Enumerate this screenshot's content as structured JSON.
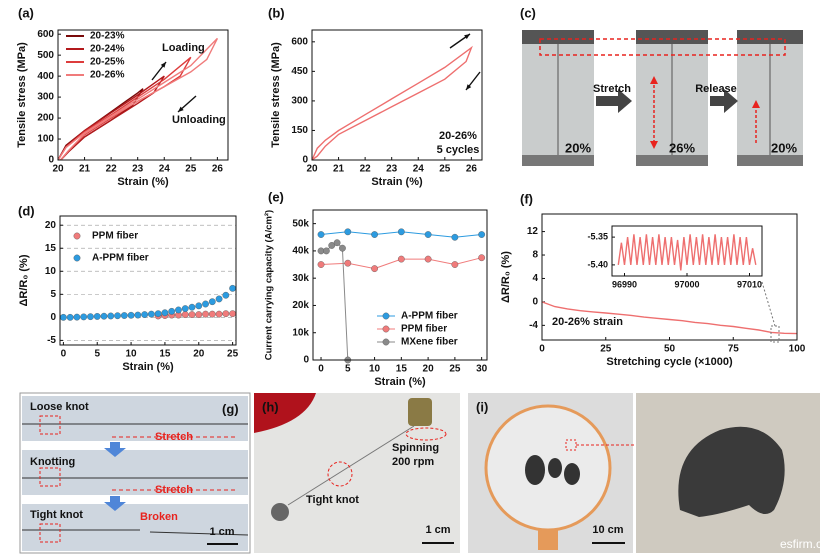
{
  "chart_data": [
    {
      "type": "line",
      "label": "(a)",
      "x_label": "Strain (%)",
      "y_label": "Tensile stress (MPa)",
      "xlim": [
        20,
        26.4
      ],
      "ylim": [
        0,
        620
      ],
      "xticks": [
        20,
        21,
        22,
        23,
        24,
        25,
        26
      ],
      "yticks": [
        0,
        100,
        200,
        300,
        400,
        500,
        600
      ],
      "legend": "upper left",
      "annotations": [
        "Loading",
        "Unloading"
      ],
      "series": [
        {
          "name": "20-23%",
          "color": "#7a0a0a",
          "x": [
            20,
            20.3,
            21,
            22,
            23,
            23.2,
            22.8,
            22,
            21,
            20.4,
            20.1
          ],
          "values": [
            0,
            70,
            140,
            230,
            320,
            340,
            260,
            190,
            110,
            40,
            0
          ]
        },
        {
          "name": "20-24%",
          "color": "#b3191c",
          "x": [
            20,
            20.3,
            21,
            22,
            23,
            24,
            23.6,
            23,
            22,
            21,
            20.4,
            20.1
          ],
          "values": [
            0,
            65,
            140,
            225,
            310,
            400,
            320,
            270,
            190,
            110,
            40,
            0
          ]
        },
        {
          "name": "20-25%",
          "color": "#dd3c3c",
          "x": [
            20,
            20.3,
            21,
            22,
            23,
            24,
            25,
            24.6,
            24,
            23,
            22,
            21,
            20.4,
            20.1
          ],
          "values": [
            0,
            60,
            135,
            215,
            300,
            385,
            490,
            400,
            350,
            280,
            200,
            120,
            45,
            0
          ]
        },
        {
          "name": "20-26%",
          "color": "#f07b7b",
          "x": [
            20,
            20.3,
            21,
            22,
            23,
            24,
            25,
            26,
            25.6,
            25,
            24,
            23,
            22,
            21,
            20.4,
            20.1
          ],
          "values": [
            0,
            60,
            130,
            210,
            290,
            370,
            450,
            580,
            480,
            420,
            350,
            280,
            205,
            125,
            45,
            0
          ]
        }
      ]
    },
    {
      "type": "line",
      "label": "(b)",
      "x_label": "Strain (%)",
      "y_label": "Tensile stress (MPa)",
      "xlim": [
        20,
        26.4
      ],
      "ylim": [
        0,
        660
      ],
      "xticks": [
        20,
        21,
        22,
        23,
        24,
        25,
        26
      ],
      "yticks": [
        0,
        150,
        300,
        450,
        600
      ],
      "annotations": [
        "20-26%",
        "5 cycles"
      ],
      "series": [
        {
          "color": "#ee6f6f",
          "x": [
            20,
            20.2,
            20.5,
            21,
            22,
            23,
            24,
            25,
            26,
            25.8,
            25,
            24,
            23,
            22,
            21,
            20.5,
            20.2,
            20
          ],
          "values": [
            0,
            60,
            100,
            150,
            230,
            310,
            390,
            470,
            570,
            500,
            410,
            340,
            270,
            200,
            130,
            70,
            20,
            0
          ]
        }
      ]
    },
    {
      "type": "scatter",
      "label": "(d)",
      "x_label": "Strain (%)",
      "y_label": "ΔR/R₀ (%)",
      "grid": true,
      "markers": true,
      "xlim": [
        -0.5,
        25.5
      ],
      "ylim": [
        -6,
        22
      ],
      "xticks": [
        0,
        5,
        10,
        15,
        20,
        25
      ],
      "yticks": [
        -5,
        0,
        5,
        10,
        15,
        20
      ],
      "legend": "left",
      "x": [
        0,
        1,
        2,
        3,
        4,
        5,
        6,
        7,
        8,
        9,
        10,
        11,
        12,
        13,
        14,
        15,
        16,
        17,
        18,
        19,
        20,
        21,
        22,
        23,
        24,
        25
      ],
      "series": [
        {
          "name": "PPM fiber",
          "color": "#f07b7b",
          "values": [
            null,
            null,
            null,
            null,
            null,
            null,
            null,
            null,
            null,
            null,
            null,
            null,
            null,
            null,
            0.3,
            0.4,
            0.5,
            0.5,
            0.6,
            0.6,
            0.6,
            0.7,
            0.7,
            0.7,
            0.8,
            0.8
          ]
        },
        {
          "name": "A-PPM fiber",
          "color": "#2c9be0",
          "values": [
            0,
            0,
            0.05,
            0.1,
            0.15,
            0.2,
            0.25,
            0.3,
            0.35,
            0.4,
            0.45,
            0.5,
            0.6,
            0.7,
            0.8,
            1.0,
            1.3,
            1.6,
            1.9,
            2.2,
            2.5,
            2.9,
            3.4,
            4.0,
            4.8,
            6.3
          ]
        }
      ]
    },
    {
      "type": "scatter",
      "label": "(e)",
      "x_label": "Strain (%)",
      "y_label": "Current carrying capacity (A/cm²)",
      "markers": true,
      "lines": true,
      "xlim": [
        -1.5,
        31
      ],
      "ylim": [
        0,
        55000
      ],
      "xticks": [
        0,
        5,
        10,
        15,
        20,
        25,
        30
      ],
      "yticks": [
        0,
        {
          "value": 10000,
          "label": "10k"
        },
        {
          "value": 20000,
          "label": "20k"
        },
        {
          "value": 30000,
          "label": "30k"
        },
        {
          "value": 40000,
          "label": "40k"
        },
        {
          "value": 50000,
          "label": "50k"
        }
      ],
      "legend": "lower right",
      "series": [
        {
          "name": "A-PPM fiber",
          "color": "#2c9be0",
          "x": [
            0,
            5,
            10,
            15,
            20,
            25,
            30
          ],
          "values": [
            46000,
            47000,
            46000,
            47000,
            46000,
            45000,
            46000
          ]
        },
        {
          "name": "PPM fiber",
          "color": "#f07b7b",
          "x": [
            0,
            5,
            10,
            15,
            20,
            25,
            30
          ],
          "values": [
            35000,
            35500,
            33500,
            37000,
            37000,
            35000,
            37500
          ]
        },
        {
          "name": "MXene fiber",
          "color": "#8a8a8a",
          "x": [
            0,
            1,
            2,
            3,
            4,
            5
          ],
          "values": [
            40000,
            40000,
            42000,
            43000,
            41000,
            0
          ]
        }
      ]
    },
    {
      "type": "line",
      "label": "(f)",
      "x_label": "Stretching cycle (×1000)",
      "y_label": "ΔR/R₀ (%)",
      "xlim": [
        0,
        100
      ],
      "ylim": [
        -6.5,
        15
      ],
      "xticks": [
        0,
        25,
        50,
        75,
        100
      ],
      "yticks": [
        -4,
        0,
        4,
        8,
        12
      ],
      "annotations": [
        "20-26% strain"
      ],
      "x": [
        0,
        5,
        10,
        15,
        20,
        25,
        30,
        35,
        40,
        45,
        50,
        55,
        60,
        65,
        70,
        75,
        80,
        85,
        90,
        95,
        100
      ],
      "series": [
        {
          "color": "#ee6f6f",
          "values": [
            0,
            -0.8,
            -1.2,
            -1.5,
            -1.7,
            -1.9,
            -2.1,
            -2.3,
            -2.6,
            -2.8,
            -3.0,
            -3.2,
            -3.5,
            -3.7,
            -4.0,
            -4.2,
            -4.5,
            -4.8,
            -5.2,
            -5.35,
            -5.4
          ]
        }
      ]
    },
    {
      "type": "line",
      "inset": true,
      "xlim": [
        96988,
        97012
      ],
      "ylim": [
        -5.42,
        -5.33
      ],
      "xticks": [
        96990,
        97000,
        97010
      ],
      "yticks": [
        -5.35,
        {
          "value": -5.4,
          "label": "-5.40"
        }
      ],
      "x": [
        96989,
        96989.5,
        96990,
        96990.5,
        96991,
        96991.5,
        96992,
        96992.5,
        96993,
        96993.5,
        96994,
        96994.5,
        96995,
        96995.5,
        96996,
        96996.5,
        96997,
        96997.5,
        96998,
        96998.5,
        96999,
        96999.5,
        97000,
        97000.5,
        97001,
        97001.5,
        97002,
        97002.5,
        97003,
        97003.5,
        97004,
        97004.5,
        97005,
        97005.5,
        97006,
        97006.5,
        97007,
        97007.5,
        97008,
        97008.5,
        97009,
        97009.5,
        97010,
        97010.5,
        97011
      ],
      "series": [
        {
          "color": "#ee6f6f",
          "values": [
            -5.4,
            -5.36,
            -5.4,
            -5.35,
            -5.4,
            -5.345,
            -5.4,
            -5.35,
            -5.4,
            -5.345,
            -5.4,
            -5.35,
            -5.4,
            -5.345,
            -5.4,
            -5.35,
            -5.4,
            -5.35,
            -5.4,
            -5.355,
            -5.41,
            -5.35,
            -5.4,
            -5.345,
            -5.4,
            -5.35,
            -5.4,
            -5.345,
            -5.4,
            -5.35,
            -5.4,
            -5.345,
            -5.4,
            -5.35,
            -5.4,
            -5.35,
            -5.4,
            -5.345,
            -5.4,
            -5.35,
            -5.4,
            -5.35,
            -5.4,
            -5.37,
            -5.4
          ]
        }
      ]
    }
  ],
  "photos": {
    "c": {
      "label": "(c)",
      "texts": [
        "Stretch",
        "Release",
        "20%",
        "26%",
        "20%"
      ]
    },
    "g": {
      "label": "(g)",
      "texts": [
        "Loose knot",
        "Stretch",
        "Knotting",
        "Stretch",
        "Tight knot",
        "Broken",
        "1 cm"
      ]
    },
    "h": {
      "label": "(h)",
      "texts": [
        "Spinning",
        "200 rpm",
        "Tight knot",
        "1 cm"
      ]
    },
    "i": {
      "label": "(i)",
      "texts": [
        "10 cm"
      ]
    }
  },
  "watermark": "esfirm.c"
}
